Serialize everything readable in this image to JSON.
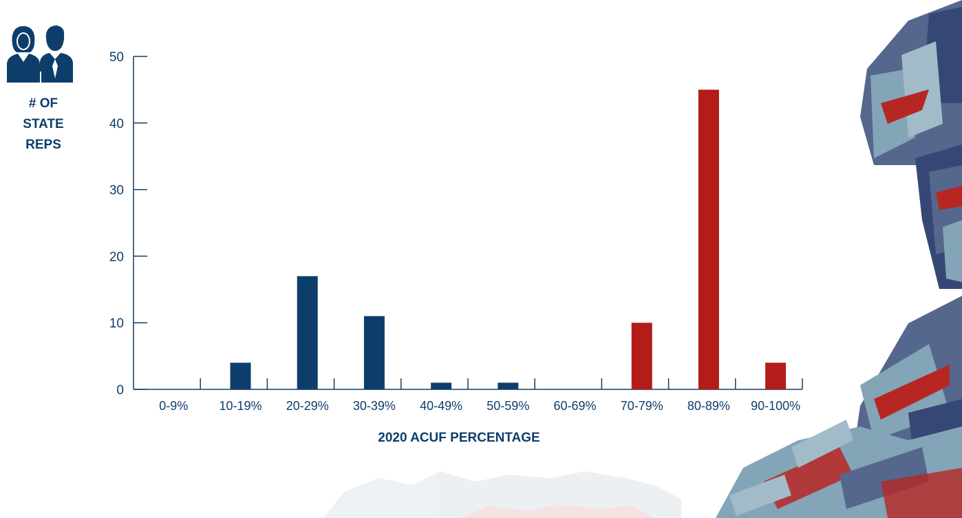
{
  "chart_data": {
    "type": "bar",
    "title": "",
    "ylabel": "# OF\nSTATE\nREPS",
    "xlabel": "2020 ACUF PERCENTAGE",
    "ylim": [
      0,
      50
    ],
    "yticks": [
      0,
      10,
      20,
      30,
      40,
      50
    ],
    "categories": [
      "0-9%",
      "10-19%",
      "20-29%",
      "30-39%",
      "40-49%",
      "50-59%",
      "60-69%",
      "70-79%",
      "80-89%",
      "90-100%"
    ],
    "values": [
      0,
      4,
      17,
      11,
      1,
      1,
      0,
      10,
      45,
      4
    ],
    "bar_colors": [
      "#0d3e6b",
      "#0d3e6b",
      "#0d3e6b",
      "#0d3e6b",
      "#0d3e6b",
      "#0d3e6b",
      "#0d3e6b",
      "#b31c18",
      "#b31c18",
      "#b31c18"
    ],
    "grid": false
  },
  "colors": {
    "democrat_blue": "#0d3e6b",
    "republican_red": "#b31c18",
    "axis": "#0d3e6b",
    "text": "#0d3e6b"
  },
  "icons": {
    "people": "people-icon"
  }
}
